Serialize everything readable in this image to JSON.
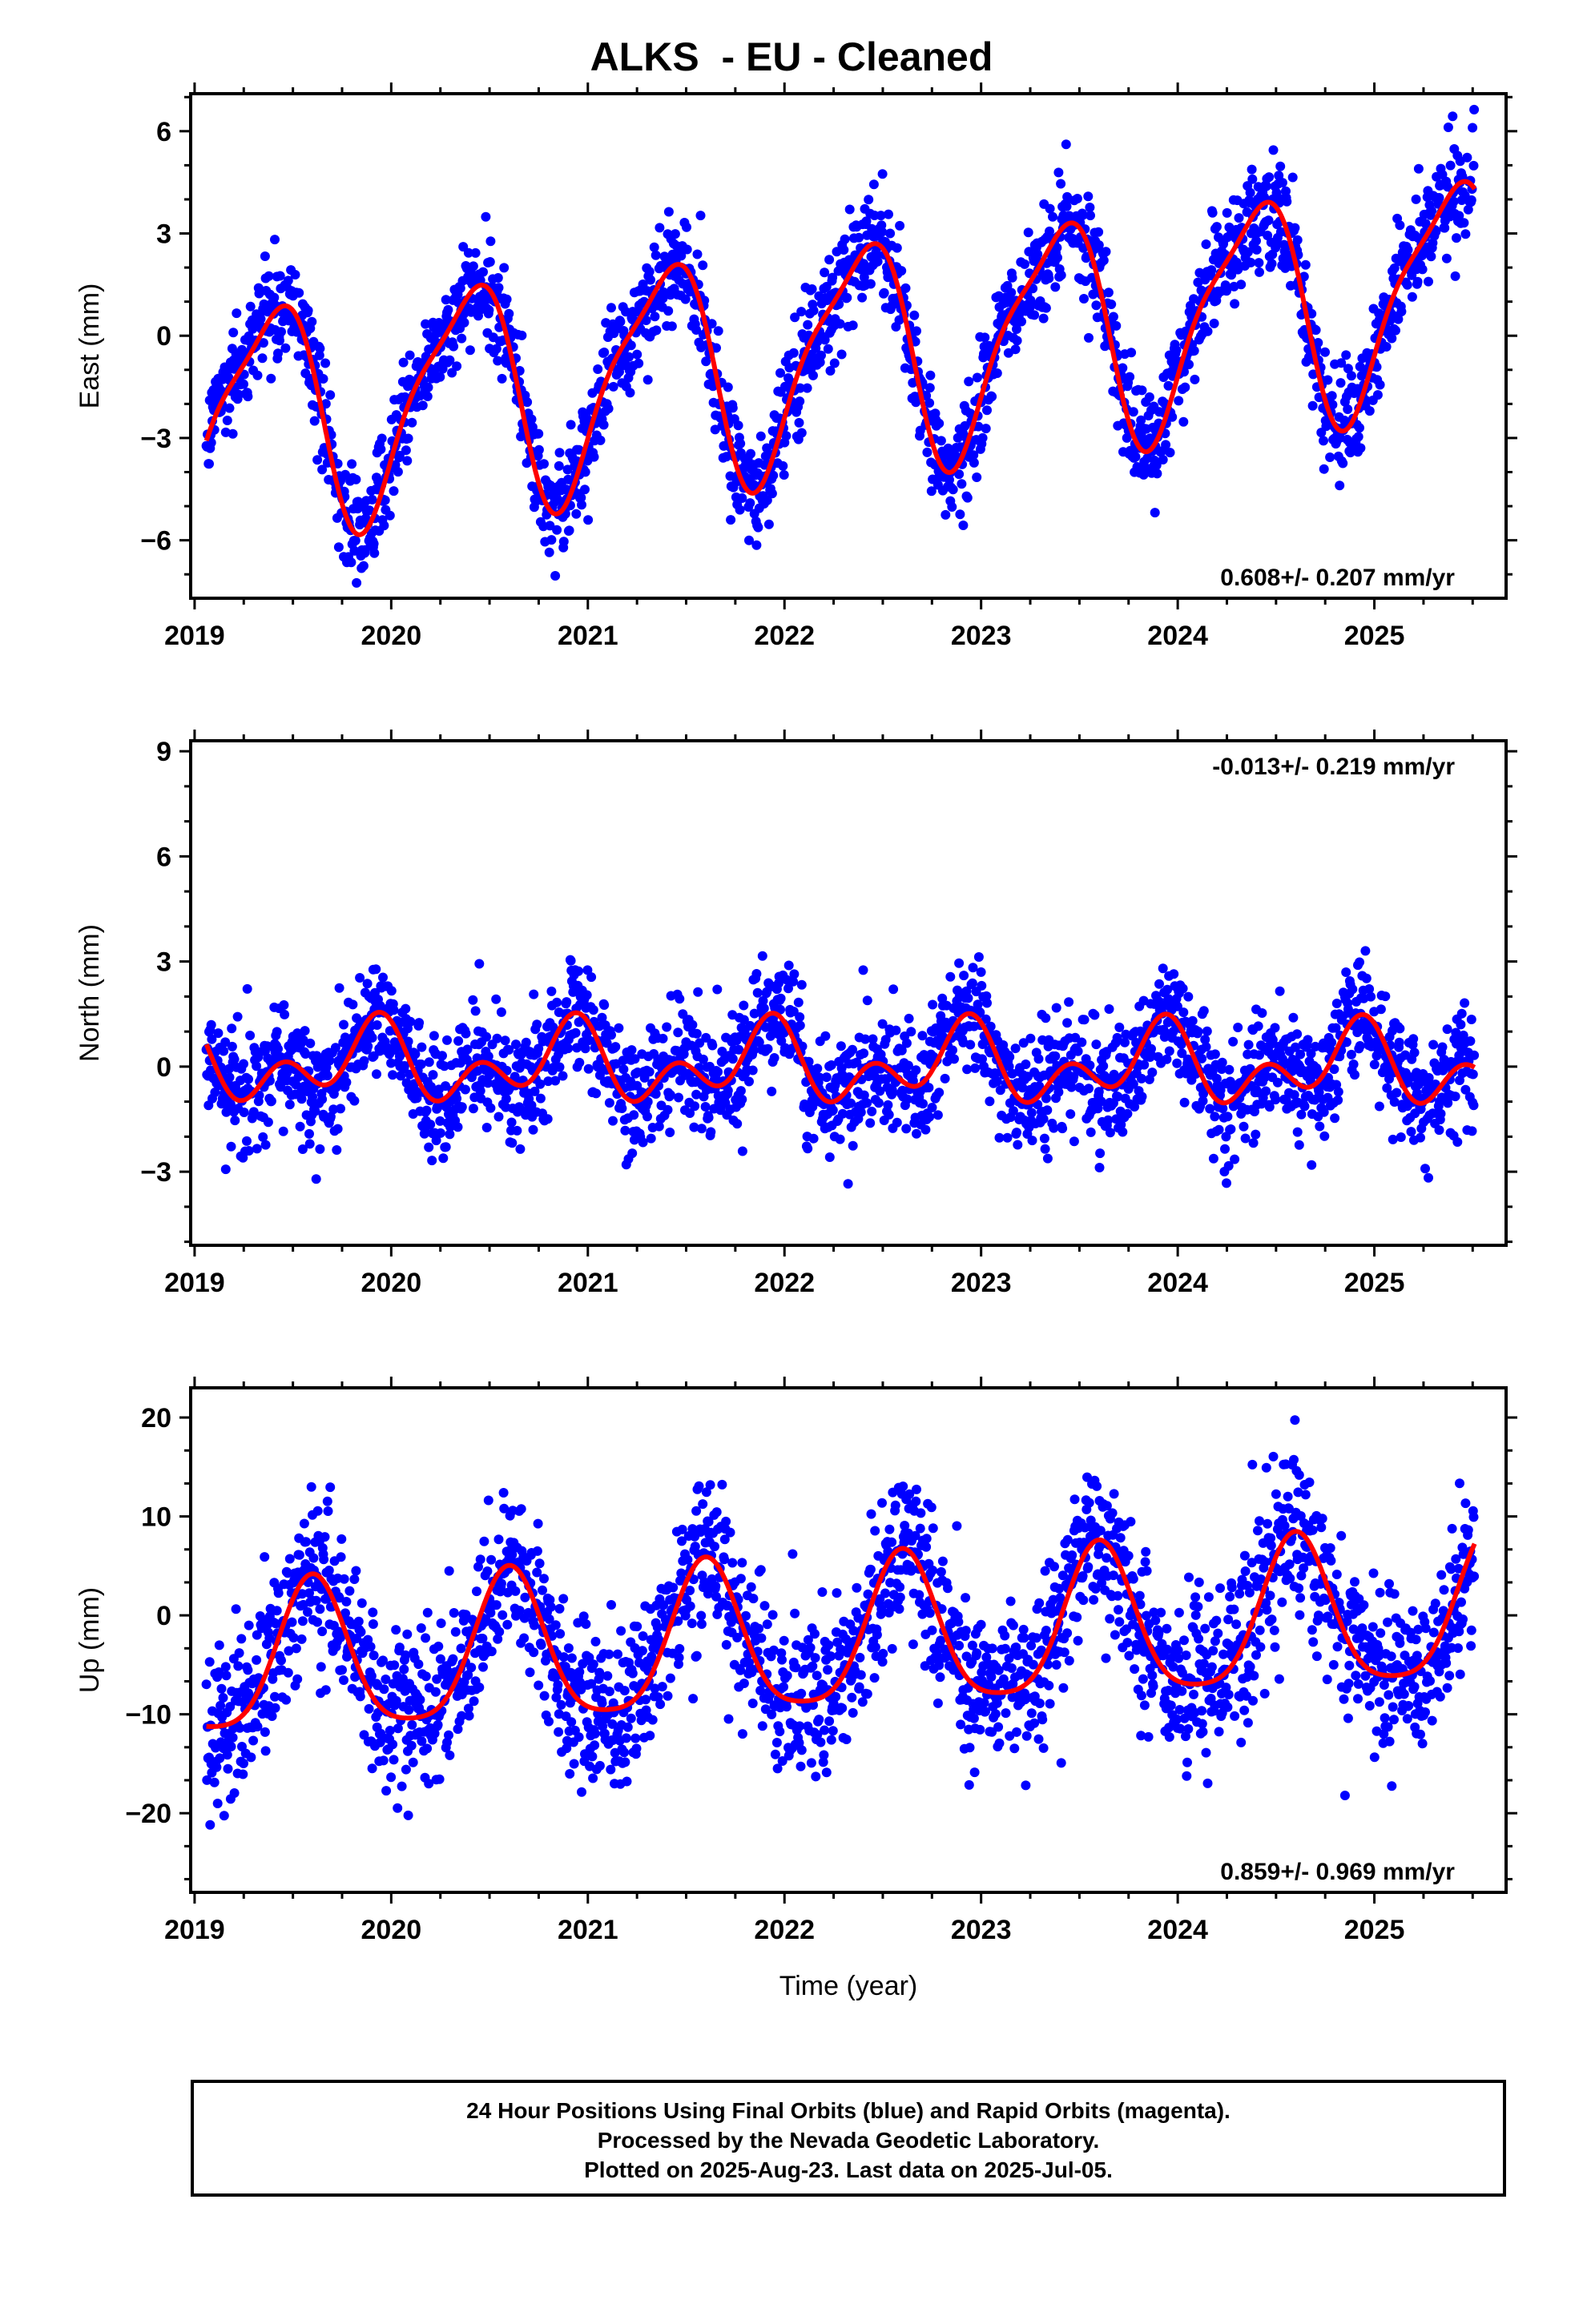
{
  "page": {
    "title": "ALKS  - EU - Cleaned"
  },
  "colors": {
    "points": "#0000ff",
    "model": "#ff0000",
    "frame": "#000000"
  },
  "footer": {
    "line1": "24 Hour Positions Using Final Orbits (blue) and Rapid Orbits (magenta).",
    "line2": "Processed by the Nevada Geodetic Laboratory.",
    "line3": "Plotted on 2025-Aug-23. Last data on 2025-Jul-05."
  },
  "chart_data": [
    {
      "type": "scatter",
      "component": "east",
      "ylabel": "East (mm)",
      "xlabel": "",
      "xlim": [
        2018.98,
        2025.67
      ],
      "ylim": [
        -7.7,
        7.1
      ],
      "xticks": [
        2019,
        2020,
        2021,
        2022,
        2023,
        2024,
        2025
      ],
      "yticks": [
        -6,
        -3,
        0,
        3,
        6
      ],
      "ytick_labels": [
        "−6",
        "−3",
        "0",
        "3",
        "6"
      ],
      "rate_text": "0.608+/- 0.207 mm/yr",
      "rate_position": "bottom-right",
      "rate_mm_per_yr": 0.608,
      "rate_sigma": 0.207,
      "model": {
        "offset": -0.55,
        "annual_amp": 3.2,
        "annual_peak": 0.38,
        "semiannual_amp": 0.8,
        "semiannual_phase": 0.05
      },
      "scatter_sd": 0.8,
      "start": 2019.06,
      "end": 2025.51,
      "series": [
        {
          "name": "Final Orbits (blue)",
          "style": "points"
        },
        {
          "name": "",
          "style": "line"
        }
      ]
    },
    {
      "type": "scatter",
      "component": "north",
      "ylabel": "North (mm)",
      "xlabel": "",
      "xlim": [
        2018.98,
        2025.67
      ],
      "ylim": [
        -5.1,
        9.3
      ],
      "xticks": [
        2019,
        2020,
        2021,
        2022,
        2023,
        2024,
        2025
      ],
      "yticks": [
        -3,
        0,
        3,
        6,
        9
      ],
      "ytick_labels": [
        "−3",
        "0",
        "3",
        "6",
        "9"
      ],
      "rate_text": "-0.013+/- 0.219 mm/yr",
      "rate_position": "top-right",
      "rate_mm_per_yr": -0.013,
      "rate_sigma": 0.219,
      "model": {
        "offset": 0.05,
        "annual_amp": 0.75,
        "annual_peak": 0.9,
        "semiannual_amp": 0.75,
        "semiannual_phase": 0.45
      },
      "scatter_sd": 0.85,
      "start": 2019.06,
      "end": 2025.51,
      "series": [
        {
          "name": "Final Orbits (blue)",
          "style": "points"
        },
        {
          "name": "",
          "style": "line"
        }
      ]
    },
    {
      "type": "scatter",
      "component": "up",
      "ylabel": "Up (mm)",
      "xlabel": "Time (year)",
      "xlim": [
        2018.98,
        2025.67
      ],
      "ylim": [
        -28,
        23
      ],
      "xticks": [
        2019,
        2020,
        2021,
        2022,
        2023,
        2024,
        2025
      ],
      "yticks": [
        -20,
        -10,
        0,
        10,
        20
      ],
      "ytick_labels": [
        "−20",
        "−10",
        "0",
        "10",
        "20"
      ],
      "rate_text": "0.859+/- 0.969 mm/yr",
      "rate_position": "bottom-right",
      "rate_mm_per_yr": 0.859,
      "rate_sigma": 0.969,
      "model": {
        "offset": -2.5,
        "annual_amp": 7.5,
        "annual_peak": 0.6,
        "semiannual_amp": 1.5,
        "semiannual_phase": 0.1
      },
      "scatter_sd": 4.2,
      "start": 2019.06,
      "end": 2025.51,
      "series": [
        {
          "name": "Final Orbits (blue)",
          "style": "points"
        },
        {
          "name": "",
          "style": "line"
        }
      ]
    }
  ]
}
